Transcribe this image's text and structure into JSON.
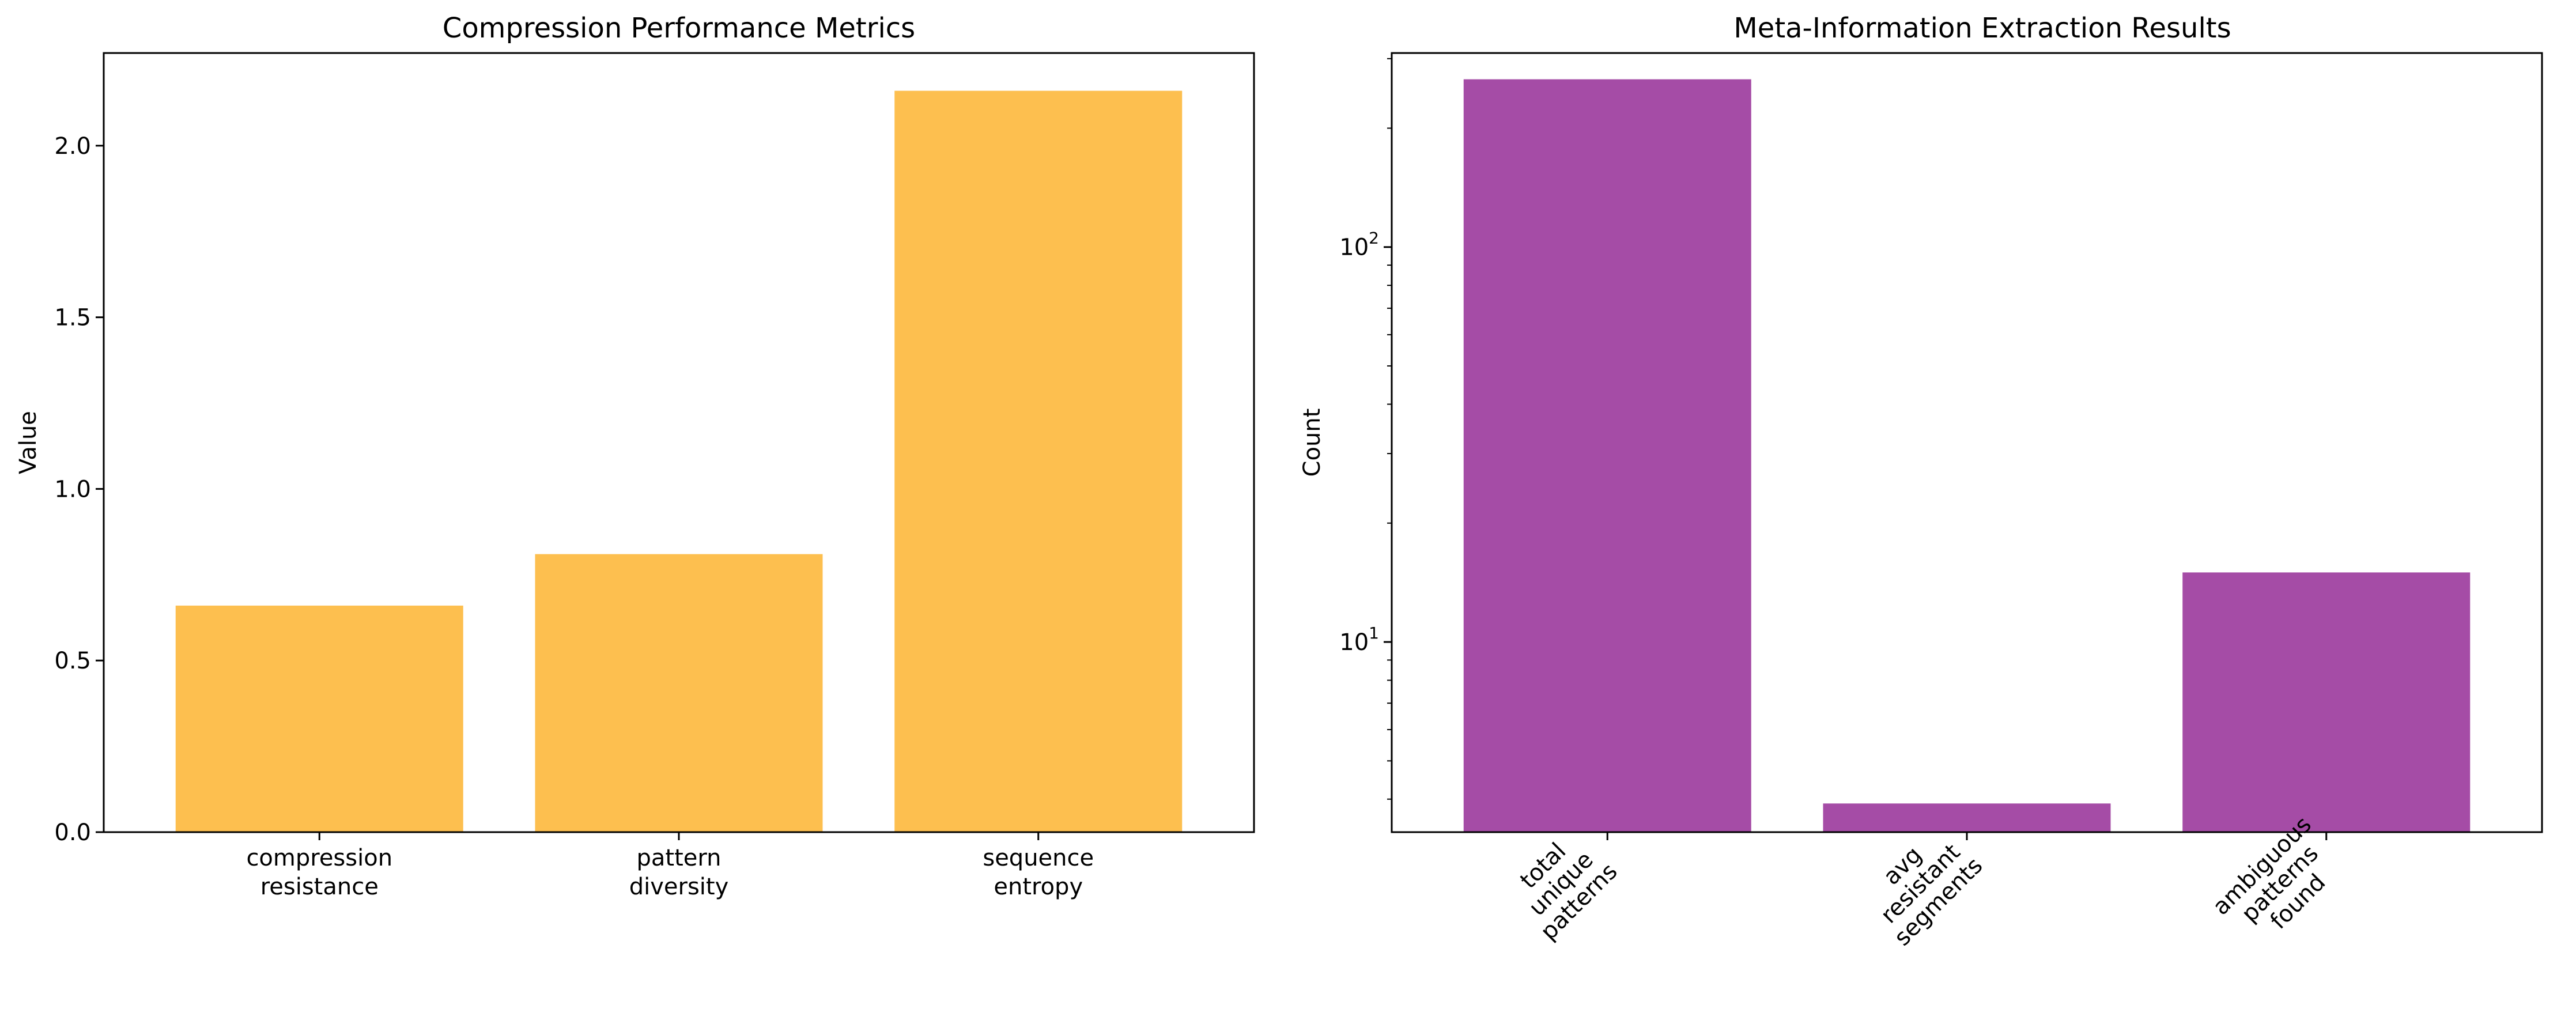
{
  "chart_data": [
    {
      "type": "bar",
      "title": "Compression Performance Metrics",
      "xlabel": "",
      "ylabel": "Value",
      "categories": [
        [
          "compression",
          "resistance"
        ],
        [
          "pattern",
          "diversity"
        ],
        [
          "sequence",
          "entropy"
        ]
      ],
      "values": [
        0.66,
        0.81,
        2.16
      ],
      "ylim": [
        0,
        2.27
      ],
      "yscale": "linear",
      "yticks": [
        0.0,
        0.5,
        1.0,
        1.5,
        2.0
      ],
      "ytick_labels": [
        "0.0",
        "0.5",
        "1.0",
        "1.5",
        "2.0"
      ],
      "color": "#fdbf4f",
      "grid": false
    },
    {
      "type": "bar",
      "title": "Meta-Information Extraction Results",
      "xlabel": "",
      "ylabel": "Count",
      "categories": [
        [
          "total",
          "unique",
          "patterns"
        ],
        [
          "avg",
          "resistant",
          "segments"
        ],
        [
          "ambiguous",
          "patterns",
          "found"
        ]
      ],
      "values": [
        266,
        3.9,
        15
      ],
      "ylim": [
        3.3,
        310
      ],
      "yscale": "log",
      "yticks": [
        10,
        100
      ],
      "ytick_labels": [
        {
          "base": "10",
          "exp": "1"
        },
        {
          "base": "10",
          "exp": "2"
        }
      ],
      "xtick_rotation": 45,
      "color": "#a54ca6",
      "grid": false
    }
  ]
}
